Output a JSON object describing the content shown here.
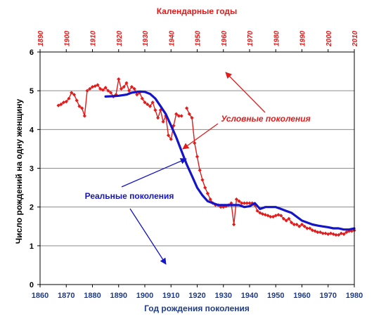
{
  "chart_data": {
    "type": "line",
    "xlabel": "Год рождения поколения",
    "x2label": "Календарные годы",
    "ylabel": "Число рождений на одну женщину",
    "xlim": [
      1860,
      1980
    ],
    "x2lim": [
      1890,
      2010
    ],
    "ylim": [
      0,
      6
    ],
    "x_ticks": [
      1860,
      1870,
      1880,
      1890,
      1900,
      1910,
      1920,
      1930,
      1940,
      1950,
      1960,
      1970,
      1980
    ],
    "x2_ticks": [
      1890,
      1900,
      1910,
      1920,
      1930,
      1940,
      1950,
      1960,
      1970,
      1980,
      1990,
      2000,
      2010
    ],
    "y_ticks": [
      0,
      1,
      2,
      3,
      4,
      5,
      6
    ],
    "grid": "horizontal",
    "series": [
      {
        "name": "Условные поколения",
        "axis": "top",
        "color": "#e31b1b",
        "marker": "diamond",
        "x": [
          1897,
          1898,
          1899,
          1900,
          1901,
          1902,
          1903,
          1904,
          1905,
          1906,
          1907,
          1908,
          1909,
          1910,
          1911,
          1912,
          1913,
          1914,
          1915,
          1916,
          1917,
          1918,
          1919,
          1920,
          1921,
          1922,
          1923,
          1924,
          1925,
          1926,
          1927,
          1928,
          1929,
          1930,
          1931,
          1932,
          1933,
          1934,
          1935,
          1936,
          1937,
          1938,
          1939,
          1940,
          1941,
          1942,
          1943,
          1944
        ],
        "y": [
          4.62,
          4.65,
          4.7,
          4.72,
          4.8,
          4.95,
          4.9,
          4.75,
          4.6,
          4.55,
          4.35,
          5.0,
          5.05,
          5.1,
          5.12,
          5.15,
          5.05,
          5.02,
          5.08,
          5.0,
          4.95,
          4.85,
          4.9,
          5.3,
          5.05,
          5.1,
          5.2,
          5.0,
          5.1,
          5.05,
          4.9,
          4.95,
          4.8,
          4.7,
          4.65,
          4.6,
          4.7,
          4.5,
          4.3,
          4.5,
          4.2,
          4.35,
          3.85,
          3.75,
          4.1,
          4.4,
          4.35,
          4.35
        ]
      },
      {
        "name": "Условные поколения",
        "axis": "top",
        "color": "#e31b1b",
        "marker": "diamond",
        "x": [
          1946,
          1947,
          1948,
          1949,
          1950,
          1951,
          1952,
          1953,
          1954,
          1955,
          1956,
          1957,
          1958,
          1959,
          1960,
          1961,
          1962,
          1963,
          1964,
          1965,
          1966,
          1967,
          1968,
          1969,
          1970,
          1971,
          1972,
          1973,
          1974,
          1975,
          1976,
          1977,
          1978,
          1979,
          1980,
          1981,
          1982,
          1983,
          1984,
          1985,
          1986,
          1987,
          1988,
          1989,
          1990,
          1991,
          1992,
          1993,
          1994,
          1995,
          1996,
          1997,
          1998,
          1999,
          2000,
          2001,
          2002,
          2003,
          2004,
          2005,
          2006,
          2007,
          2008,
          2009,
          2010
        ],
        "y": [
          4.55,
          4.4,
          4.3,
          3.65,
          3.3,
          2.95,
          2.7,
          2.5,
          2.35,
          2.2,
          2.1,
          2.05,
          2.05,
          2.0,
          2.0,
          2.02,
          2.05,
          2.1,
          1.55,
          2.2,
          2.15,
          2.1,
          2.1,
          2.1,
          2.1,
          2.1,
          2.05,
          1.9,
          1.85,
          1.82,
          1.8,
          1.78,
          1.75,
          1.75,
          1.78,
          1.8,
          1.78,
          1.7,
          1.65,
          1.7,
          1.6,
          1.55,
          1.55,
          1.5,
          1.55,
          1.5,
          1.45,
          1.45,
          1.4,
          1.38,
          1.35,
          1.35,
          1.32,
          1.32,
          1.3,
          1.32,
          1.3,
          1.28,
          1.28,
          1.32,
          1.3,
          1.35,
          1.38,
          1.38,
          1.4
        ]
      },
      {
        "name": "Реальные поколения",
        "axis": "bottom",
        "color": "#1414c8",
        "x": [
          1885,
          1888,
          1890,
          1893,
          1895,
          1898,
          1900,
          1902,
          1904,
          1906,
          1908,
          1910,
          1912,
          1914,
          1916,
          1918,
          1920,
          1922,
          1924,
          1926,
          1928,
          1930,
          1932,
          1934,
          1936,
          1938,
          1940,
          1942,
          1944,
          1946,
          1948,
          1950,
          1952,
          1954,
          1956,
          1958,
          1960,
          1962,
          1964,
          1966,
          1968,
          1970,
          1972,
          1974,
          1976,
          1978,
          1980
        ],
        "y": [
          4.85,
          4.86,
          4.87,
          4.9,
          4.95,
          4.98,
          4.97,
          4.92,
          4.8,
          4.6,
          4.4,
          4.1,
          3.8,
          3.45,
          3.1,
          2.8,
          2.5,
          2.3,
          2.15,
          2.1,
          2.05,
          2.05,
          2.05,
          2.05,
          2.05,
          2.0,
          2.02,
          2.1,
          1.95,
          2.0,
          2.0,
          2.0,
          1.95,
          1.9,
          1.85,
          1.75,
          1.65,
          1.6,
          1.55,
          1.52,
          1.5,
          1.48,
          1.45,
          1.45,
          1.42,
          1.42,
          1.45
        ]
      }
    ],
    "annotations": [
      {
        "text": "Условные поколения",
        "color": "#e31b1b"
      },
      {
        "text": "Реальные поколения",
        "color": "#1414c8"
      }
    ]
  }
}
